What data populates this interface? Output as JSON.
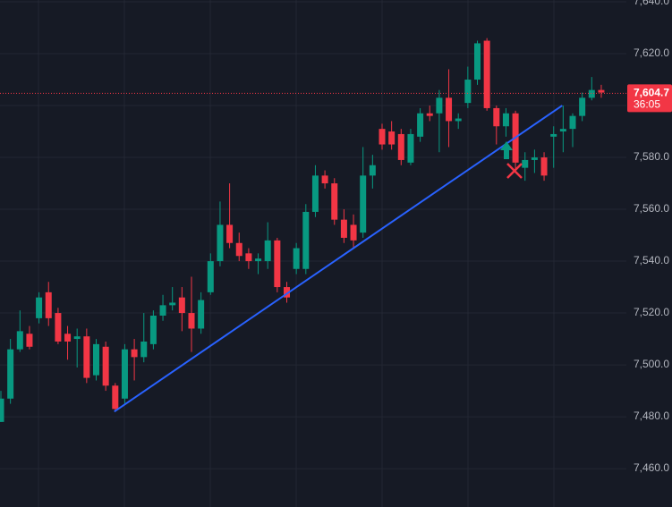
{
  "chart_data": {
    "type": "candlestick",
    "up_color": "#089981",
    "down_color": "#f23645",
    "open": [
      7478,
      7487,
      7506,
      7512,
      7518,
      7528,
      7520,
      7512,
      7510,
      7511,
      7496,
      7507,
      7492,
      7487,
      7506,
      7503,
      7508,
      7519,
      7523,
      7526,
      7520,
      7514,
      7528,
      7540,
      7554,
      7547,
      7543,
      7540,
      7540,
      7548,
      7530,
      7537,
      7537,
      7559,
      7573,
      7570,
      7556,
      7554,
      7551,
      7573,
      7591,
      7590,
      7589,
      7578,
      7588,
      7597,
      7597,
      7603,
      7594,
      7601,
      7610,
      7625,
      7599,
      7592,
      7597,
      7576,
      7579,
      7580,
      7588,
      7590,
      7591,
      7596,
      7603,
      7606
    ],
    "high": [
      7490,
      7510,
      7521,
      7515,
      7528,
      7532,
      7522,
      7515,
      7514,
      7514,
      7510,
      7509,
      7493,
      7508,
      7510,
      7520,
      7521,
      7527,
      7530,
      7530,
      7534,
      7528,
      7543,
      7563,
      7570,
      7551,
      7545,
      7543,
      7555,
      7549,
      7532,
      7547,
      7562,
      7577,
      7575,
      7572,
      7560,
      7558,
      7584,
      7581,
      7593,
      7594,
      7591,
      7591,
      7599,
      7600,
      7606,
      7614,
      7597,
      7615,
      7625,
      7626,
      7600,
      7599,
      7598,
      7582,
      7583,
      7582,
      7592,
      7600,
      7597,
      7605,
      7611,
      7608
    ],
    "low": [
      7478,
      7485,
      7505,
      7506,
      7516,
      7515,
      7508,
      7502,
      7499,
      7493,
      7494,
      7490,
      7482,
      7485,
      7494,
      7501,
      7506,
      7517,
      7521,
      7513,
      7505,
      7512,
      7527,
      7538,
      7545,
      7540,
      7537,
      7535,
      7537,
      7528,
      7524,
      7535,
      7535,
      7557,
      7568,
      7554,
      7547,
      7545,
      7549,
      7568,
      7583,
      7583,
      7577,
      7577,
      7586,
      7594,
      7582,
      7584,
      7591,
      7599,
      7608,
      7598,
      7585,
      7588,
      7575,
      7571,
      7574,
      7571,
      7576,
      7582,
      7584,
      7594,
      7602,
      7603
    ],
    "close": [
      7487,
      7506,
      7513,
      7507,
      7526,
      7518,
      7509,
      7509,
      7511,
      7495,
      7508,
      7492,
      7483,
      7506,
      7503,
      7509,
      7519,
      7523,
      7524,
      7520,
      7514,
      7525,
      7540,
      7554,
      7547,
      7542,
      7540,
      7541,
      7548,
      7530,
      7526,
      7545,
      7559,
      7573,
      7570,
      7556,
      7549,
      7548,
      7573,
      7577,
      7585,
      7585,
      7579,
      7589,
      7597,
      7596,
      7603,
      7594,
      7595,
      7610,
      7624,
      7599,
      7592,
      7597,
      7578,
      7579,
      7580,
      7573,
      7589,
      7591,
      7596,
      7603,
      7606,
      7605
    ],
    "ylim": [
      7445.2,
      7640.7
    ],
    "yticks": [
      {
        "value": 7460,
        "label": "7,460.0"
      },
      {
        "value": 7480,
        "label": "7,480.0"
      },
      {
        "value": 7500,
        "label": "7,500.0"
      },
      {
        "value": 7520,
        "label": "7,520.0"
      },
      {
        "value": 7540,
        "label": "7,540.0"
      },
      {
        "value": 7560,
        "label": "7,560.0"
      },
      {
        "value": 7580,
        "label": "7,580.0"
      },
      {
        "value": 7600,
        "label": "7,600.0"
      },
      {
        "value": 7620,
        "label": "7,620.0"
      },
      {
        "value": 7640,
        "label": "7,640.0"
      }
    ],
    "grid": true,
    "last_price": {
      "value": 7604.7,
      "label": "7,604.7",
      "countdown": "36:05",
      "color": "#f23645"
    },
    "trend_line": {
      "x": [
        11.9,
        58.9
      ],
      "values": [
        7482,
        7600
      ],
      "color": "#2962ff"
    }
  }
}
